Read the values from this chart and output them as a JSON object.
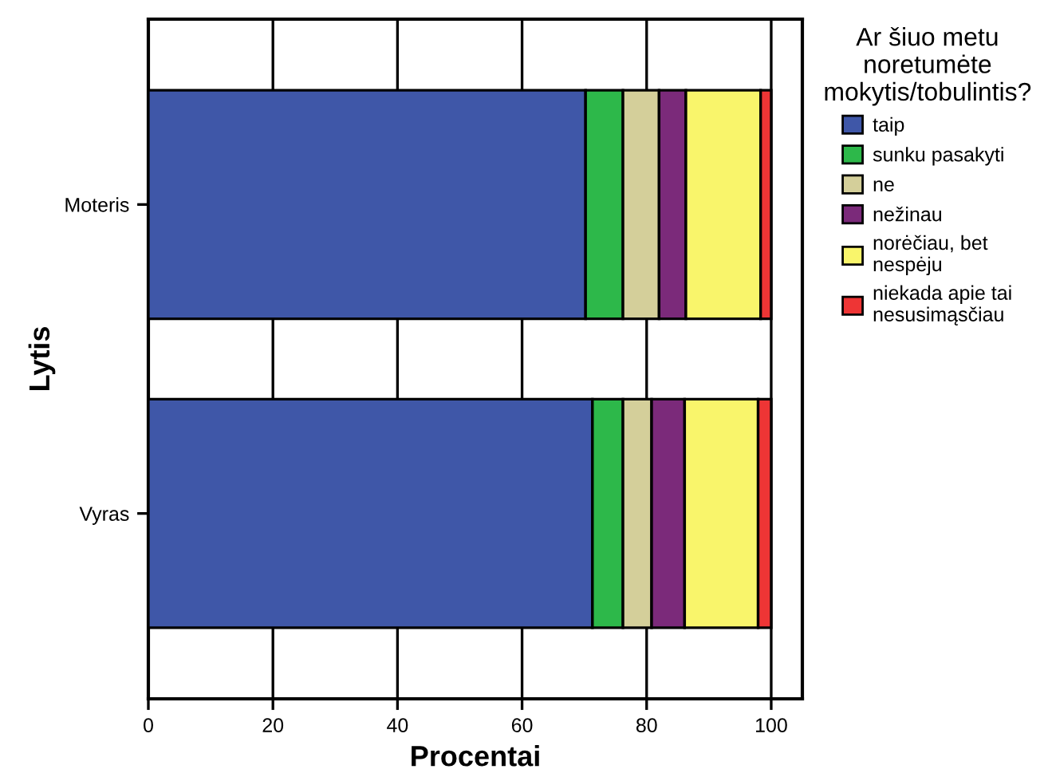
{
  "chart_data": {
    "type": "bar",
    "orientation": "horizontal",
    "stacked": true,
    "xlabel": "Procentai",
    "ylabel": "Lytis",
    "legend_title": "Ar šiuo metu\nnoretumėte\nmokytis/tobulintis?",
    "legend": "right",
    "grid": "x",
    "categories": [
      "Moteris",
      "Vyras"
    ],
    "xlim": [
      0,
      105
    ],
    "xticks": [
      0,
      20,
      40,
      60,
      80,
      100
    ],
    "series": [
      {
        "name": "taip",
        "color": "#3f57a8",
        "values": [
          70.2,
          71.3
        ]
      },
      {
        "name": "sunku pasakyti",
        "color": "#2db84a",
        "values": [
          6.0,
          4.9
        ]
      },
      {
        "name": "ne",
        "color": "#d4cf9a",
        "values": [
          5.8,
          4.6
        ]
      },
      {
        "name": "nežinau",
        "color": "#7b2a7a",
        "values": [
          4.3,
          5.3
        ]
      },
      {
        "name": "norėčiau, bet\nnespėju",
        "color": "#f9f56b",
        "values": [
          12.0,
          11.8
        ]
      },
      {
        "name": "niekada apie tai\nnesusimąsčiau",
        "color": "#ee3535",
        "values": [
          1.7,
          2.1
        ]
      }
    ]
  }
}
